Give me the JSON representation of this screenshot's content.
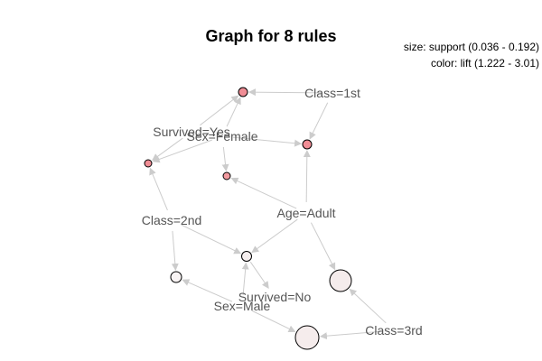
{
  "title": "Graph for 8 rules",
  "legend": {
    "size": "size: support (0.036 - 0.192)",
    "color": "color: lift (1.222 - 3.01)"
  },
  "items": [
    {
      "id": "class1st",
      "label": "Class=1st"
    },
    {
      "id": "survivedYes",
      "label": "Survived=Yes"
    },
    {
      "id": "sexFemale",
      "label": "Sex=Female"
    },
    {
      "id": "class2nd",
      "label": "Class=2nd"
    },
    {
      "id": "ageAdult",
      "label": "Age=Adult"
    },
    {
      "id": "survivedNo",
      "label": "Survived=No"
    },
    {
      "id": "sexMale",
      "label": "Sex=Male"
    },
    {
      "id": "class3rd",
      "label": "Class=3rd"
    }
  ],
  "rules": [
    {
      "id": "r1",
      "color": "#f08d95"
    },
    {
      "id": "r2",
      "color": "#f08d95"
    },
    {
      "id": "r3",
      "color": "#f08d95"
    },
    {
      "id": "r4",
      "color": "#f29a9f"
    },
    {
      "id": "r5",
      "color": "#f5eeee"
    },
    {
      "id": "r6",
      "color": "#f8f3f3"
    },
    {
      "id": "r7",
      "color": "#f5ecec"
    },
    {
      "id": "r8",
      "color": "#f5ecec"
    }
  ],
  "edges": [
    [
      "class1st",
      "r1"
    ],
    [
      "class1st",
      "r2"
    ],
    [
      "survivedYes",
      "r1"
    ],
    [
      "survivedYes",
      "r3"
    ],
    [
      "sexFemale",
      "r1"
    ],
    [
      "sexFemale",
      "r2"
    ],
    [
      "sexFemale",
      "r3"
    ],
    [
      "sexFemale",
      "r4"
    ],
    [
      "class2nd",
      "r3"
    ],
    [
      "class2nd",
      "r5"
    ],
    [
      "class2nd",
      "r6"
    ],
    [
      "ageAdult",
      "r2"
    ],
    [
      "ageAdult",
      "r4"
    ],
    [
      "ageAdult",
      "r5"
    ],
    [
      "ageAdult",
      "r7"
    ],
    [
      "r5",
      "survivedNo"
    ],
    [
      "sexMale",
      "r5"
    ],
    [
      "sexMale",
      "r6"
    ],
    [
      "sexMale",
      "r8"
    ],
    [
      "class3rd",
      "r7"
    ],
    [
      "class3rd",
      "r8"
    ]
  ]
}
